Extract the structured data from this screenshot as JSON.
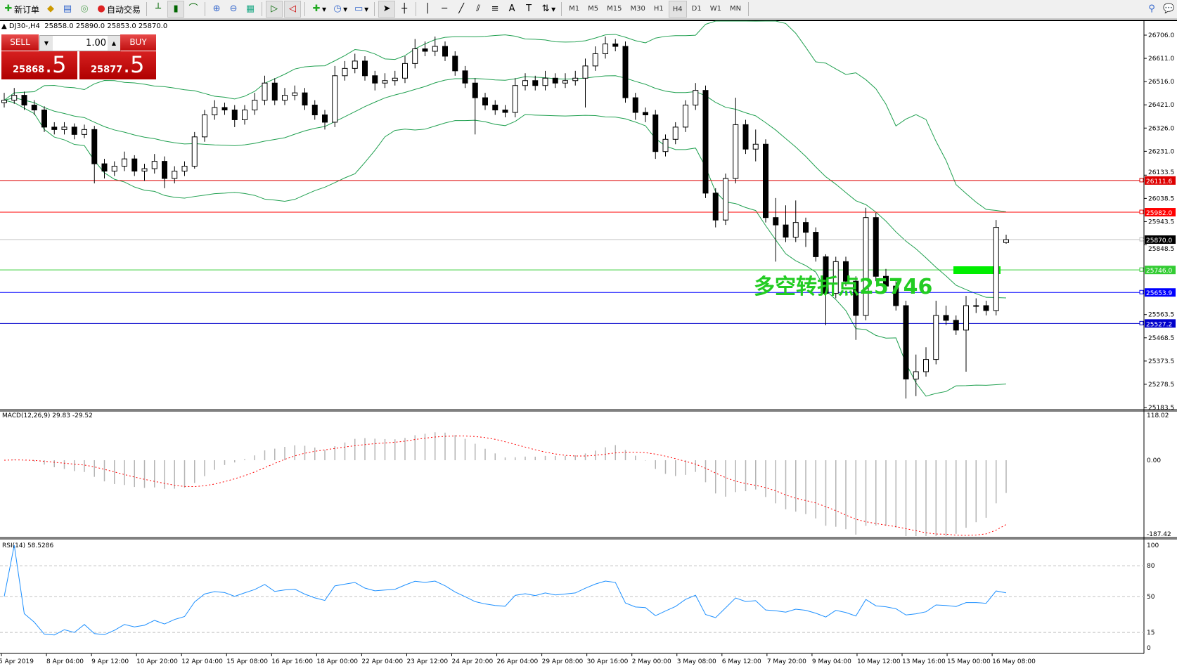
{
  "toolbar": {
    "new_order": "新订单",
    "auto_trading": "自动交易",
    "timeframes": [
      "M1",
      "M5",
      "M15",
      "M30",
      "H1",
      "H4",
      "D1",
      "W1",
      "MN"
    ],
    "active_timeframe": "H4",
    "icons": [
      "new-order-icon",
      "market-watch-icon",
      "navigator-icon",
      "signals-icon",
      "auto-trading-icon",
      "bar-chart-icon",
      "candlestick-icon",
      "line-chart-icon",
      "zoom-in-icon",
      "zoom-out-icon",
      "tile-windows-icon",
      "auto-scroll-icon",
      "chart-shift-icon",
      "indicators-icon",
      "periods-icon",
      "templates-icon",
      "cursor-icon",
      "crosshair-icon",
      "vertical-line-icon",
      "horizontal-line-icon",
      "trendline-icon",
      "equidistant-channel-icon",
      "fibonacci-icon",
      "text-icon",
      "text-label-icon",
      "arrows-icon",
      "search-icon",
      "chat-icon"
    ]
  },
  "header": {
    "symbol": "DJ30-,H4",
    "ohlc": "25858.0 25890.0 25853.0 25870.0"
  },
  "trade_panel": {
    "sell_label": "SELL",
    "buy_label": "BUY",
    "lot": "1.00",
    "sell_price_small": "25868",
    "sell_price_big": ".5",
    "buy_price_small": "25877",
    "buy_price_big": ".5"
  },
  "annotation": {
    "text": "多空转折点25746",
    "color": "#22cc22"
  },
  "colors": {
    "bands": "#20a050",
    "rsi": "#1e90ff",
    "macd_hist": "#b4b4b4",
    "macd_signal": "#ff0000"
  },
  "chart_data": {
    "type": "candlestick",
    "symbol": "DJ30-",
    "timeframe": "H4",
    "ylim": [
      25183.5,
      26706.0
    ],
    "y_ticks": [
      26706.0,
      26611.0,
      26516.0,
      26421.0,
      26326.0,
      26231.0,
      26133.5,
      26038.5,
      25943.5,
      25848.5,
      25563.5,
      25468.5,
      25373.5,
      25278.5,
      25183.5
    ],
    "x_tick_labels": [
      "5 Apr 2019",
      "8 Apr 04:00",
      "9 Apr 12:00",
      "10 Apr 20:00",
      "12 Apr 04:00",
      "15 Apr 08:00",
      "16 Apr 16:00",
      "18 Apr 00:00",
      "22 Apr 04:00",
      "23 Apr 12:00",
      "24 Apr 20:00",
      "26 Apr 04:00",
      "29 Apr 08:00",
      "30 Apr 16:00",
      "2 May 00:00",
      "3 May 08:00",
      "6 May 12:00",
      "7 May 20:00",
      "9 May 04:00",
      "10 May 12:00",
      "13 May 16:00",
      "15 May 00:00",
      "16 May 08:00"
    ],
    "horizontal_lines": [
      {
        "value": "26111.6",
        "color": "#dd0000"
      },
      {
        "value": "25982.0",
        "color": "#ff0000"
      },
      {
        "value": "25870.0",
        "color": "#000000",
        "line": "#c0c0c0"
      },
      {
        "value": "25746.0",
        "color": "#33cc33"
      },
      {
        "value": "25653.9",
        "color": "#0000ff"
      },
      {
        "value": "25527.2",
        "color": "#0000cc"
      }
    ],
    "ohlc": [
      [
        26430,
        26470,
        26410,
        26440
      ],
      [
        26440,
        26490,
        26425,
        26460
      ],
      [
        26460,
        26475,
        26400,
        26420
      ],
      [
        26420,
        26440,
        26380,
        26400
      ],
      [
        26400,
        26415,
        26310,
        26330
      ],
      [
        26330,
        26350,
        26300,
        26320
      ],
      [
        26320,
        26350,
        26300,
        26330
      ],
      [
        26330,
        26345,
        26280,
        26300
      ],
      [
        26300,
        26340,
        26285,
        26320
      ],
      [
        26320,
        26335,
        26100,
        26180
      ],
      [
        26180,
        26200,
        26120,
        26150
      ],
      [
        26150,
        26190,
        26130,
        26170
      ],
      [
        26170,
        26230,
        26150,
        26200
      ],
      [
        26200,
        26215,
        26130,
        26150
      ],
      [
        26150,
        26180,
        26110,
        26160
      ],
      [
        26160,
        26220,
        26140,
        26190
      ],
      [
        26190,
        26210,
        26080,
        26120
      ],
      [
        26120,
        26170,
        26100,
        26150
      ],
      [
        26150,
        26190,
        26130,
        26170
      ],
      [
        26170,
        26310,
        26160,
        26290
      ],
      [
        26290,
        26400,
        26270,
        26380
      ],
      [
        26380,
        26440,
        26360,
        26410
      ],
      [
        26410,
        26430,
        26380,
        26400
      ],
      [
        26400,
        26420,
        26330,
        26360
      ],
      [
        26360,
        26420,
        26340,
        26400
      ],
      [
        26400,
        26470,
        26380,
        26440
      ],
      [
        26440,
        26540,
        26420,
        26510
      ],
      [
        26510,
        26530,
        26420,
        26440
      ],
      [
        26440,
        26490,
        26420,
        26460
      ],
      [
        26460,
        26500,
        26440,
        26470
      ],
      [
        26470,
        26490,
        26400,
        26420
      ],
      [
        26420,
        26440,
        26360,
        26380
      ],
      [
        26380,
        26400,
        26320,
        26350
      ],
      [
        26350,
        26580,
        26330,
        26540
      ],
      [
        26540,
        26600,
        26520,
        26570
      ],
      [
        26570,
        26630,
        26550,
        26600
      ],
      [
        26600,
        26620,
        26520,
        26540
      ],
      [
        26540,
        26560,
        26480,
        26510
      ],
      [
        26510,
        26550,
        26490,
        26520
      ],
      [
        26520,
        26560,
        26500,
        26530
      ],
      [
        26530,
        26620,
        26510,
        26590
      ],
      [
        26590,
        26690,
        26570,
        26650
      ],
      [
        26650,
        26680,
        26620,
        26640
      ],
      [
        26640,
        26700,
        26620,
        26660
      ],
      [
        26660,
        26680,
        26600,
        26620
      ],
      [
        26620,
        26640,
        26540,
        26560
      ],
      [
        26560,
        26580,
        26490,
        26510
      ],
      [
        26510,
        26530,
        26300,
        26450
      ],
      [
        26450,
        26470,
        26400,
        26420
      ],
      [
        26420,
        26440,
        26380,
        26400
      ],
      [
        26400,
        26420,
        26370,
        26390
      ],
      [
        26390,
        26530,
        26370,
        26500
      ],
      [
        26500,
        26550,
        26480,
        26520
      ],
      [
        26520,
        26540,
        26480,
        26500
      ],
      [
        26500,
        26560,
        26480,
        26530
      ],
      [
        26530,
        26550,
        26490,
        26510
      ],
      [
        26510,
        26550,
        26490,
        26520
      ],
      [
        26520,
        26560,
        26500,
        26530
      ],
      [
        26530,
        26610,
        26410,
        26580
      ],
      [
        26580,
        26660,
        26560,
        26630
      ],
      [
        26630,
        26700,
        26610,
        26670
      ],
      [
        26670,
        26690,
        26640,
        26660
      ],
      [
        26660,
        26680,
        26430,
        26450
      ],
      [
        26450,
        26470,
        26360,
        26390
      ],
      [
        26390,
        26410,
        26350,
        26380
      ],
      [
        26380,
        26400,
        26200,
        26230
      ],
      [
        26230,
        26300,
        26210,
        26280
      ],
      [
        26280,
        26350,
        26260,
        26330
      ],
      [
        26330,
        26440,
        26310,
        26420
      ],
      [
        26420,
        26510,
        26400,
        26480
      ],
      [
        26480,
        26500,
        26040,
        26060
      ],
      [
        26060,
        26080,
        25920,
        25950
      ],
      [
        25950,
        26140,
        25930,
        26120
      ],
      [
        26120,
        26450,
        26100,
        26340
      ],
      [
        26340,
        26360,
        26220,
        26240
      ],
      [
        26240,
        26320,
        26190,
        26260
      ],
      [
        26260,
        26280,
        25940,
        25960
      ],
      [
        25960,
        26040,
        25780,
        25930
      ],
      [
        25930,
        26010,
        25860,
        25880
      ],
      [
        25880,
        26030,
        25860,
        25940
      ],
      [
        25940,
        25960,
        25840,
        25900
      ],
      [
        25900,
        25920,
        25780,
        25800
      ],
      [
        25800,
        25810,
        25520,
        25650
      ],
      [
        25650,
        25800,
        25630,
        25780
      ],
      [
        25780,
        25800,
        25680,
        25700
      ],
      [
        25700,
        25720,
        25460,
        25560
      ],
      [
        25560,
        26000,
        25540,
        25960
      ],
      [
        25960,
        25980,
        25700,
        25720
      ],
      [
        25720,
        25750,
        25660,
        25680
      ],
      [
        25680,
        25700,
        25580,
        25600
      ],
      [
        25600,
        25620,
        25220,
        25300
      ],
      [
        25300,
        25400,
        25230,
        25330
      ],
      [
        25330,
        25430,
        25310,
        25380
      ],
      [
        25380,
        25620,
        25360,
        25560
      ],
      [
        25560,
        25600,
        25520,
        25540
      ],
      [
        25540,
        25560,
        25480,
        25500
      ],
      [
        25500,
        25640,
        25330,
        25600
      ],
      [
        25600,
        25630,
        25570,
        25600
      ],
      [
        25600,
        25620,
        25560,
        25580
      ],
      [
        25580,
        25950,
        25560,
        25920
      ],
      [
        25858,
        25890,
        25853,
        25870
      ]
    ],
    "indicators": {
      "bollinger": {
        "period": 20,
        "deviation": 2
      },
      "macd": {
        "label": "MACD(12,26,9) 29.83 -29.52",
        "ylim": [
          -187.42,
          118.02
        ],
        "ticks": [
          "118.02",
          "0.00",
          "-187.42"
        ]
      },
      "rsi": {
        "label": "RSI(14) 58.5286",
        "ylim": [
          0,
          100
        ],
        "ticks": [
          "100",
          "80",
          "50",
          "15",
          "0"
        ],
        "levels": [
          80,
          50,
          15
        ]
      }
    }
  }
}
